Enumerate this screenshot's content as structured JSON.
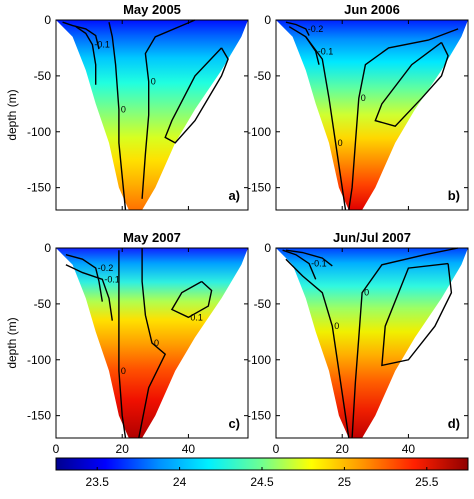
{
  "chart_data": [
    {
      "type": "heatmap",
      "title": "May 2005",
      "panel_label": "a)",
      "ylabel": "depth (m)",
      "xlim": [
        0,
        58
      ],
      "ylim": [
        -170,
        0
      ],
      "xticks": [],
      "yticks": [
        0,
        -50,
        -100,
        -150
      ],
      "contours": [
        {
          "label": "0",
          "points": [
            [
              16,
              -2
            ],
            [
              17,
              -15
            ],
            [
              18,
              -40
            ],
            [
              19,
              -80
            ],
            [
              19,
              -110
            ],
            [
              20,
              -140
            ],
            [
              21,
              -170
            ]
          ]
        },
        {
          "label": "0",
          "points": [
            [
              42,
              0
            ],
            [
              38,
              -5
            ],
            [
              30,
              -15
            ],
            [
              27,
              -30
            ],
            [
              28,
              -55
            ],
            [
              28,
              -85
            ],
            [
              27,
              -120
            ],
            [
              26,
              -160
            ]
          ]
        },
        {
          "label": "-0.1",
          "points": [
            [
              6,
              -6
            ],
            [
              9,
              -12
            ],
            [
              11,
              -22
            ],
            [
              12,
              -40
            ],
            [
              12,
              -58
            ]
          ]
        },
        {
          "label": "",
          "points": [
            [
              2,
              -2
            ],
            [
              5,
              -5
            ],
            [
              9,
              -8
            ],
            [
              12,
              -14
            ],
            [
              13,
              -26
            ]
          ]
        },
        {
          "label": "",
          "points": [
            [
              50,
              -25
            ],
            [
              42,
              -50
            ],
            [
              35,
              -90
            ],
            [
              33,
              -105
            ],
            [
              36,
              -110
            ],
            [
              42,
              -90
            ],
            [
              50,
              -50
            ],
            [
              52,
              -35
            ],
            [
              50,
              -25
            ]
          ]
        }
      ]
    },
    {
      "type": "heatmap",
      "title": "Jun 2006",
      "panel_label": "b)",
      "ylabel": "",
      "xlim": [
        0,
        58
      ],
      "ylim": [
        -170,
        0
      ],
      "xticks": [],
      "yticks": [
        0,
        -50,
        -100,
        -150
      ],
      "contours": [
        {
          "label": "0",
          "points": [
            [
              9,
              -15
            ],
            [
              14,
              -35
            ],
            [
              16,
              -70
            ],
            [
              18,
              -110
            ],
            [
              20,
              -150
            ],
            [
              21,
              -170
            ]
          ]
        },
        {
          "label": "0",
          "points": [
            [
              55,
              -8
            ],
            [
              46,
              -18
            ],
            [
              34,
              -25
            ],
            [
              27,
              -40
            ],
            [
              25,
              -70
            ],
            [
              24,
              -110
            ],
            [
              23,
              -150
            ],
            [
              22,
              -170
            ]
          ]
        },
        {
          "label": "-0.2",
          "points": [
            [
              3,
              -2
            ],
            [
              6,
              -4
            ],
            [
              9,
              -8
            ],
            [
              10,
              -14
            ]
          ]
        },
        {
          "label": "-0.1",
          "points": [
            [
              4,
              -6
            ],
            [
              9,
              -15
            ],
            [
              12,
              -28
            ],
            [
              13,
              -40
            ]
          ]
        },
        {
          "label": "",
          "points": [
            [
              50,
              -20
            ],
            [
              41,
              -40
            ],
            [
              32,
              -75
            ],
            [
              30,
              -90
            ],
            [
              36,
              -95
            ],
            [
              44,
              -70
            ],
            [
              50,
              -50
            ],
            [
              52,
              -32
            ],
            [
              50,
              -20
            ]
          ]
        }
      ]
    },
    {
      "type": "heatmap",
      "title": "May 2007",
      "panel_label": "c)",
      "ylabel": "depth (m)",
      "xlim": [
        0,
        58
      ],
      "ylim": [
        -170,
        0
      ],
      "xticks": [
        0,
        20,
        40
      ],
      "yticks": [
        0,
        -50,
        -100,
        -150
      ],
      "contours": [
        {
          "label": "0",
          "points": [
            [
              19,
              -2
            ],
            [
              19,
              -30
            ],
            [
              19,
              -70
            ],
            [
              19,
              -110
            ],
            [
              20,
              -150
            ],
            [
              21,
              -170
            ]
          ]
        },
        {
          "label": "0",
          "points": [
            [
              26,
              0
            ],
            [
              26,
              -30
            ],
            [
              27,
              -60
            ],
            [
              29,
              -85
            ],
            [
              33,
              -95
            ],
            [
              28,
              -125
            ],
            [
              25,
              -170
            ]
          ]
        },
        {
          "label": "-0.2",
          "points": [
            [
              3,
              -6
            ],
            [
              8,
              -10
            ],
            [
              12,
              -18
            ],
            [
              13,
              -30
            ],
            [
              14,
              -48
            ]
          ]
        },
        {
          "label": "-0.1",
          "points": [
            [
              3,
              -15
            ],
            [
              8,
              -22
            ],
            [
              14,
              -28
            ],
            [
              16,
              -45
            ],
            [
              17,
              -65
            ]
          ]
        },
        {
          "label": "0.1",
          "points": [
            [
              44,
              -30
            ],
            [
              38,
              -40
            ],
            [
              35,
              -55
            ],
            [
              40,
              -62
            ],
            [
              46,
              -52
            ],
            [
              47,
              -38
            ],
            [
              44,
              -30
            ]
          ]
        }
      ]
    },
    {
      "type": "heatmap",
      "title": "Jun/Jul 2007",
      "panel_label": "d)",
      "ylabel": "",
      "xlim": [
        0,
        58
      ],
      "ylim": [
        -170,
        0
      ],
      "xticks": [
        0,
        20,
        40
      ],
      "yticks": [
        0,
        -50,
        -100,
        -150
      ],
      "contours": [
        {
          "label": "0",
          "points": [
            [
              3,
              -10
            ],
            [
              8,
              -25
            ],
            [
              14,
              -40
            ],
            [
              17,
              -70
            ],
            [
              19,
              -110
            ],
            [
              21,
              -150
            ],
            [
              22,
              -170
            ]
          ]
        },
        {
          "label": "0",
          "points": [
            [
              55,
              0
            ],
            [
              45,
              -6
            ],
            [
              32,
              -15
            ],
            [
              26,
              -40
            ],
            [
              25,
              -80
            ],
            [
              24,
              -120
            ],
            [
              23,
              -170
            ]
          ]
        },
        {
          "label": "-0.1",
          "points": [
            [
              2,
              -2
            ],
            [
              6,
              -6
            ],
            [
              10,
              -14
            ],
            [
              12,
              -28
            ]
          ]
        },
        {
          "label": "",
          "points": [
            [
              3,
              -2
            ],
            [
              8,
              -4
            ],
            [
              14,
              -9
            ],
            [
              17,
              -16
            ]
          ]
        },
        {
          "label": "",
          "points": [
            [
              52,
              -14
            ],
            [
              40,
              -18
            ],
            [
              33,
              -70
            ],
            [
              32,
              -105
            ],
            [
              40,
              -100
            ],
            [
              48,
              -70
            ],
            [
              53,
              -40
            ],
            [
              52,
              -14
            ]
          ]
        }
      ]
    }
  ],
  "colorbar": {
    "ticks": [
      23.5,
      24,
      24.5,
      25,
      25.5
    ],
    "range": [
      23.25,
      25.75
    ]
  }
}
